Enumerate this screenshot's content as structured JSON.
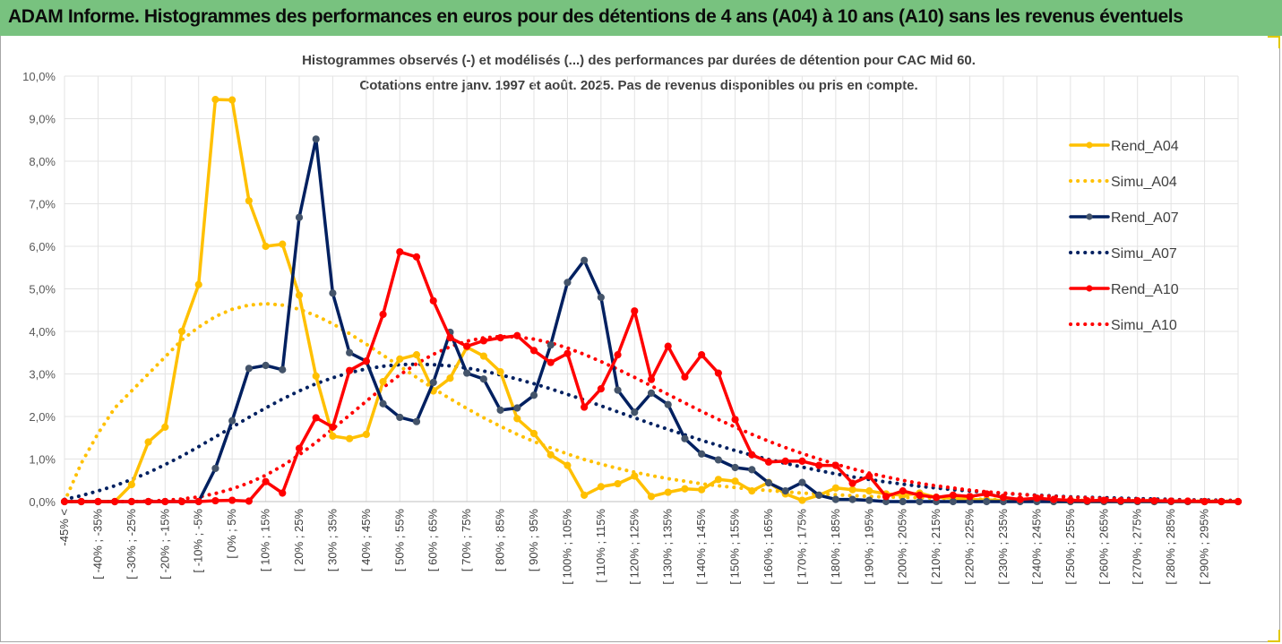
{
  "banner": {
    "title": "ADAM Informe. Histogrammes des performances en euros pour des détentions de 4 ans (A04) à 10 ans (A10) sans les revenus éventuels",
    "color": "#78c27f"
  },
  "chart_data": {
    "type": "line",
    "title": "Histogrammes observés (-) et modélisés (...) des performances par durées de détention pour CAC Mid 60.",
    "subtitle": "Cotations entre janv. 1997 et août. 2025. Pas de revenus disponibles ou pris en compte.",
    "xlabel": "",
    "ylabel": "",
    "ylim": [
      0,
      0.1
    ],
    "y_ticks": [
      "0,0%",
      "1,0%",
      "2,0%",
      "3,0%",
      "4,0%",
      "5,0%",
      "6,0%",
      "7,0%",
      "8,0%",
      "9,0%",
      "10,0%"
    ],
    "grid": true,
    "legend_position": "right",
    "categories": [
      "-45% <",
      "[ -45% ; -40%",
      "[ -40% ; -35%",
      "[ -35% ; -30%",
      "[ -30% ; -25%",
      "[ -25% ; -20%",
      "[ -20% ; -15%",
      "[ -15% ; -10%",
      "[ -10% ; -5%",
      "[ -5% ; 0%",
      "[ 0% ; 5%",
      "[ 5% ; 10%",
      "[ 10% ; 15%",
      "[ 15% ; 20%",
      "[ 20% ; 25%",
      "[ 25% ; 30%",
      "[ 30% ; 35%",
      "[ 35% ; 40%",
      "[ 40% ; 45%",
      "[ 45% ; 50%",
      "[ 50% ; 55%",
      "[ 55% ; 60%",
      "[ 60% ; 65%",
      "[ 65% ; 70%",
      "[ 70% ; 75%",
      "[ 75% ; 80%",
      "[ 80% ; 85%",
      "[ 85% ; 90%",
      "[ 90% ; 95%",
      "[ 95% ; 100%",
      "[ 100% ; 105%",
      "[ 105% ; 110%",
      "[ 110% ; 115%",
      "[ 115% ; 120%",
      "[ 120% ; 125%",
      "[ 125% ; 130%",
      "[ 130% ; 135%",
      "[ 135% ; 140%",
      "[ 140% ; 145%",
      "[ 145% ; 150%",
      "[ 150% ; 155%",
      "[ 155% ; 160%",
      "[ 160% ; 165%",
      "[ 165% ; 170%",
      "[ 170% ; 175%",
      "[ 175% ; 180%",
      "[ 180% ; 185%",
      "[ 185% ; 190%",
      "[ 190% ; 195%",
      "[ 195% ; 200%",
      "[ 200% ; 205%",
      "[ 205% ; 210%",
      "[ 210% ; 215%",
      "[ 215% ; 220%",
      "[ 220% ; 225%",
      "[ 225% ; 230%",
      "[ 230% ; 235%",
      "[ 235% ; 240%",
      "[ 240% ; 245%",
      "[ 245% ; 250%",
      "[ 250% ; 255%",
      "[ 255% ; 260%",
      "[ 260% ; 265%",
      "[ 265% ; 270%",
      "[ 270% ; 275%",
      "[ 275% ; 280%",
      "[ 280% ; 285%",
      "[ 285% ; 290%",
      "[ 290% ; 295%",
      "[ 295% ; 300%",
      "300% >"
    ],
    "shown_labels": [
      "-45% <",
      "[ -40% ; -35%",
      "[ -30% ; -25%",
      "[ -20% ; -15%",
      "[ -10% ; -5%",
      "[ 0% ; 5%",
      "[ 10% ; 15%",
      "[ 20% ; 25%",
      "[ 30% ; 35%",
      "[ 40% ; 45%",
      "[ 50% ; 55%",
      "[ 60% ; 65%",
      "[ 70% ; 75%",
      "[ 80% ; 85%",
      "[ 90% ; 95%",
      "[ 100% ; 105%",
      "[ 110% ; 115%",
      "[ 120% ; 125%",
      "[ 130% ; 135%",
      "[ 140% ; 145%",
      "[ 150% ; 155%",
      "[ 160% ; 165%",
      "[ 170% ; 175%",
      "[ 180% ; 185%",
      "[ 190% ; 195%",
      "[ 200% ; 205%",
      "[ 210% ; 215%",
      "[ 220% ; 225%",
      "[ 230% ; 235%",
      "[ 240% ; 245%",
      "[ 250% ; 255%",
      "[ 260% ; 265%",
      "[ 270% ; 275%",
      "[ 280% ; 285%",
      "[ 290% ; 295%"
    ],
    "series": [
      {
        "name": "Rend_A04",
        "color": "#ffc000",
        "style": "solid",
        "markers": true,
        "values": [
          0.0,
          0.0,
          0.0,
          0.0,
          0.004,
          0.014,
          0.0175,
          0.04,
          0.051,
          0.0945,
          0.0944,
          0.0707,
          0.06,
          0.0605,
          0.0485,
          0.0295,
          0.0154,
          0.0148,
          0.0158,
          0.0282,
          0.0335,
          0.0345,
          0.026,
          0.029,
          0.0363,
          0.0342,
          0.0305,
          0.0195,
          0.016,
          0.011,
          0.0085,
          0.0015,
          0.0035,
          0.0042,
          0.006,
          0.0012,
          0.0022,
          0.003,
          0.0028,
          0.0052,
          0.0048,
          0.0025,
          0.0045,
          0.0018,
          0.0003,
          0.0015,
          0.0032,
          0.0028,
          0.0025,
          0.0018,
          0.0015,
          0.002,
          0.001,
          0.0008,
          0.0005,
          0.0004,
          0.0003,
          0.0002,
          0.0001,
          0.0,
          0.0,
          0.0,
          0.0,
          0.0,
          0.0,
          0.0,
          0.0,
          0.0,
          0.0,
          0.0,
          0.0
        ]
      },
      {
        "name": "Simu_A04",
        "color": "#ffc000",
        "style": "dotted",
        "markers": false,
        "values": [
          0.0,
          0.009,
          0.016,
          0.022,
          0.026,
          0.03,
          0.034,
          0.038,
          0.041,
          0.0435,
          0.0452,
          0.0462,
          0.0465,
          0.0462,
          0.0452,
          0.0437,
          0.0418,
          0.0395,
          0.037,
          0.0344,
          0.0318,
          0.0292,
          0.0266,
          0.0242,
          0.0219,
          0.0197,
          0.0177,
          0.0158,
          0.0141,
          0.0126,
          0.0112,
          0.0099,
          0.0088,
          0.0078,
          0.0069,
          0.0061,
          0.0054,
          0.0048,
          0.0042,
          0.0037,
          0.0033,
          0.0029,
          0.0026,
          0.0023,
          0.002,
          0.0018,
          0.0016,
          0.0014,
          0.0012,
          0.0011,
          0.001,
          0.0009,
          0.0008,
          0.0007,
          0.0006,
          0.0005,
          0.0005,
          0.0004,
          0.0004,
          0.0003,
          0.0003,
          0.0003,
          0.0002,
          0.0002,
          0.0002,
          0.0002,
          0.0001,
          0.0001,
          0.0001,
          0.0001,
          0.0001
        ]
      },
      {
        "name": "Rend_A07",
        "color": "#002060",
        "style": "solid",
        "markers": true,
        "values": [
          0.0,
          0.0,
          0.0,
          0.0,
          0.0,
          0.0,
          0.0,
          0.0,
          0.0,
          0.0078,
          0.019,
          0.0313,
          0.032,
          0.031,
          0.0668,
          0.0852,
          0.049,
          0.035,
          0.033,
          0.023,
          0.0198,
          0.0188,
          0.028,
          0.0398,
          0.0302,
          0.0288,
          0.0215,
          0.022,
          0.025,
          0.0368,
          0.0515,
          0.0567,
          0.048,
          0.0262,
          0.021,
          0.0255,
          0.0228,
          0.0148,
          0.0112,
          0.0098,
          0.008,
          0.0075,
          0.0044,
          0.0025,
          0.0045,
          0.0015,
          0.0005,
          0.0005,
          0.0003,
          0.0,
          0.0,
          0.0,
          0.0,
          0.0,
          0.0,
          0.0,
          0.0,
          0.0,
          0.0,
          0.0,
          0.0,
          0.0,
          0.0,
          0.0,
          0.0,
          0.0,
          0.0,
          0.0,
          0.0,
          0.0,
          0.0
        ]
      },
      {
        "name": "Simu_A07",
        "color": "#002060",
        "style": "dotted",
        "markers": false,
        "values": [
          0.0005,
          0.0014,
          0.0025,
          0.0037,
          0.0052,
          0.0068,
          0.0087,
          0.0107,
          0.0129,
          0.0152,
          0.0175,
          0.0198,
          0.022,
          0.0241,
          0.026,
          0.0277,
          0.0291,
          0.0303,
          0.0312,
          0.0318,
          0.0322,
          0.0323,
          0.0322,
          0.0319,
          0.0314,
          0.0307,
          0.0298,
          0.0288,
          0.0277,
          0.0265,
          0.0252,
          0.0239,
          0.0225,
          0.0211,
          0.0197,
          0.0183,
          0.017,
          0.0157,
          0.0144,
          0.0132,
          0.012,
          0.0109,
          0.0099,
          0.009,
          0.0081,
          0.0073,
          0.0065,
          0.0058,
          0.0052,
          0.0046,
          0.0041,
          0.0036,
          0.0032,
          0.0028,
          0.0025,
          0.0022,
          0.0019,
          0.0017,
          0.0015,
          0.0013,
          0.0011,
          0.001,
          0.0009,
          0.0008,
          0.0007,
          0.0006,
          0.0005,
          0.0004,
          0.0004,
          0.0003,
          0.0003
        ]
      },
      {
        "name": "Rend_A10",
        "color": "#ff0000",
        "style": "solid",
        "markers": true,
        "values": [
          0.0,
          0.0,
          0.0,
          0.0,
          0.0,
          0.0,
          0.0,
          0.0,
          0.0,
          0.0002,
          0.0003,
          0.0001,
          0.0047,
          0.002,
          0.0125,
          0.0197,
          0.0175,
          0.0308,
          0.033,
          0.044,
          0.0587,
          0.0575,
          0.0472,
          0.0385,
          0.0365,
          0.0378,
          0.0385,
          0.039,
          0.0355,
          0.0327,
          0.0348,
          0.0222,
          0.0265,
          0.0345,
          0.0448,
          0.0287,
          0.0365,
          0.0293,
          0.0345,
          0.0302,
          0.0193,
          0.011,
          0.0093,
          0.0095,
          0.0095,
          0.0085,
          0.0085,
          0.0043,
          0.006,
          0.0012,
          0.0025,
          0.0015,
          0.001,
          0.0015,
          0.0012,
          0.0018,
          0.001,
          0.0005,
          0.0008,
          0.0005,
          0.0003,
          0.0002,
          0.0003,
          0.0002,
          0.0002,
          0.0002,
          0.0001,
          0.0001,
          0.0,
          0.0,
          0.0
        ]
      },
      {
        "name": "Simu_A10",
        "color": "#ff0000",
        "style": "dotted",
        "markers": false,
        "values": [
          0.0,
          0.0,
          0.0,
          0.0,
          0.0,
          0.0001,
          0.0003,
          0.0006,
          0.0011,
          0.0019,
          0.003,
          0.0044,
          0.0062,
          0.0084,
          0.011,
          0.0139,
          0.0171,
          0.0203,
          0.0236,
          0.0268,
          0.0298,
          0.0324,
          0.0346,
          0.0364,
          0.0377,
          0.0385,
          0.0388,
          0.0387,
          0.0382,
          0.0373,
          0.0361,
          0.0346,
          0.0329,
          0.0311,
          0.0292,
          0.0272,
          0.0252,
          0.0232,
          0.0212,
          0.0193,
          0.0175,
          0.0158,
          0.0142,
          0.0127,
          0.0113,
          0.01,
          0.0088,
          0.0077,
          0.0067,
          0.0058,
          0.005,
          0.0043,
          0.0037,
          0.0032,
          0.0027,
          0.0023,
          0.002,
          0.0017,
          0.0014,
          0.0012,
          0.001,
          0.0009,
          0.0007,
          0.0006,
          0.0005,
          0.0004,
          0.0004,
          0.0003,
          0.0003,
          0.0002,
          0.0002
        ]
      }
    ]
  }
}
